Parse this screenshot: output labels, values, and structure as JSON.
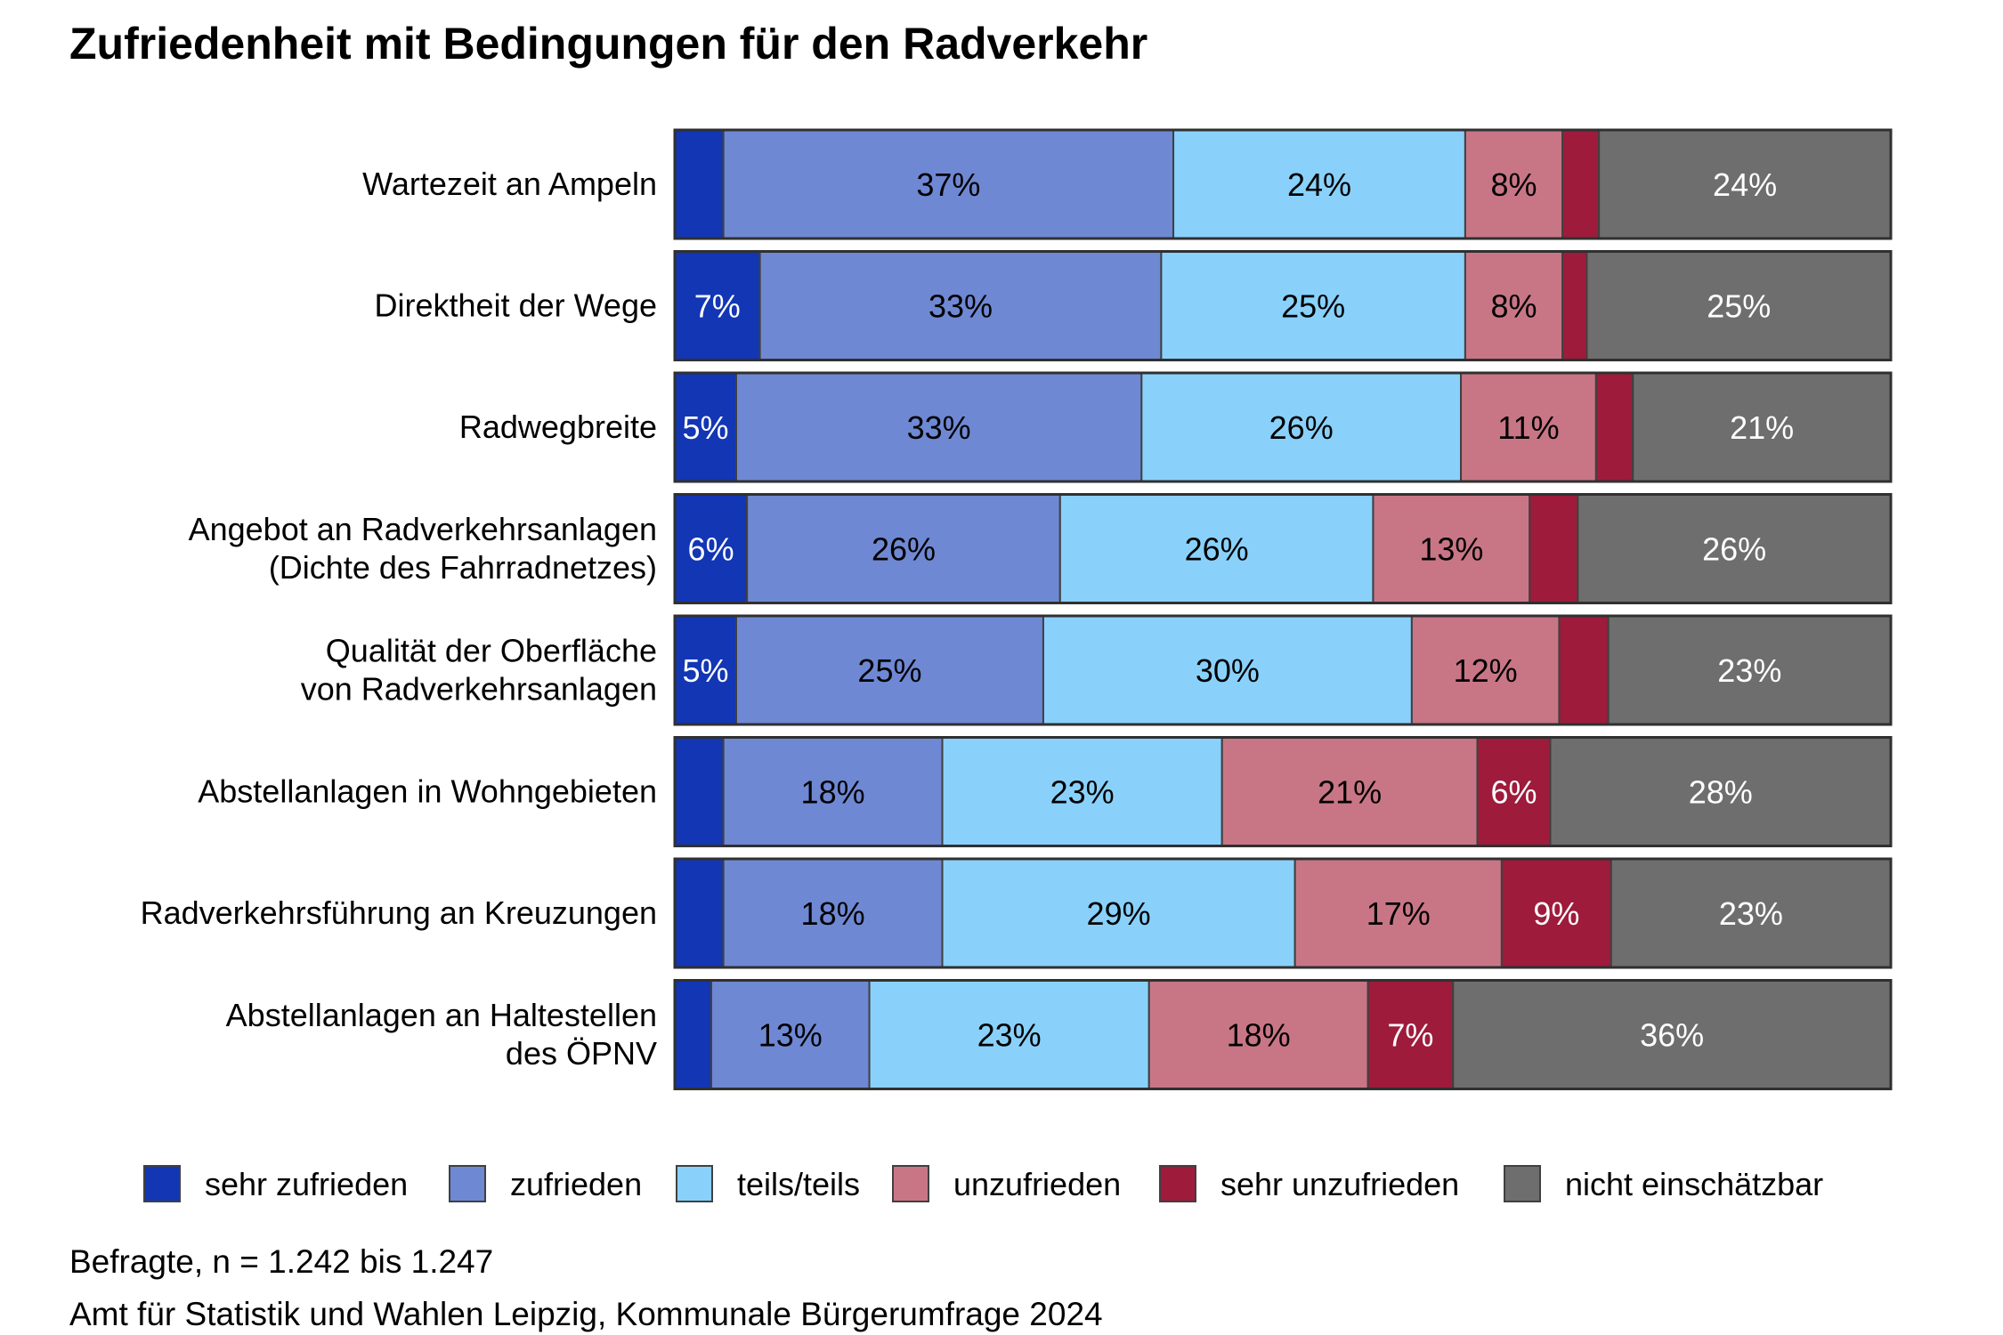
{
  "chart_data": {
    "type": "bar",
    "orientation": "horizontal",
    "stacked": true,
    "title": "Zufriedenheit mit Bedingungen für den Radverkehr",
    "xlim": [
      0,
      100
    ],
    "unit": "%",
    "grid": false,
    "legend_position": "bottom",
    "categories": [
      [
        "Wartezeit an Ampeln"
      ],
      [
        "Direktheit der Wege"
      ],
      [
        "Radwegbreite"
      ],
      [
        "Angebot an Radverkehrsanlagen",
        "(Dichte des Fahrradnetzes)"
      ],
      [
        "Qualität der Oberfläche",
        "von Radverkehrsanlagen"
      ],
      [
        "Abstellanlagen in Wohngebieten"
      ],
      [
        "Radverkehrsführung an Kreuzungen"
      ],
      [
        "Abstellanlagen an Haltestellen",
        "des ÖPNV"
      ]
    ],
    "series": [
      {
        "name": "sehr zufrieden",
        "color": "#1236b4",
        "text_color": "#ffffff",
        "values": [
          4,
          7,
          5,
          6,
          5,
          4,
          4,
          3
        ],
        "labeled": [
          false,
          true,
          true,
          true,
          true,
          false,
          false,
          false
        ]
      },
      {
        "name": "zufrieden",
        "color": "#6f88d3",
        "text_color": "#000000",
        "values": [
          37,
          33,
          33,
          26,
          25,
          18,
          18,
          13
        ],
        "labeled": [
          true,
          true,
          true,
          true,
          true,
          true,
          true,
          true
        ]
      },
      {
        "name": "teils/teils",
        "color": "#89d1fb",
        "text_color": "#000000",
        "values": [
          24,
          25,
          26,
          26,
          30,
          23,
          29,
          23
        ],
        "labeled": [
          true,
          true,
          true,
          true,
          true,
          true,
          true,
          true
        ]
      },
      {
        "name": "unzufrieden",
        "color": "#c87686",
        "text_color": "#000000",
        "values": [
          8,
          8,
          11,
          13,
          12,
          21,
          17,
          18
        ],
        "labeled": [
          true,
          true,
          true,
          true,
          true,
          true,
          true,
          true
        ]
      },
      {
        "name": "sehr unzufrieden",
        "color": "#9e1b3b",
        "text_color": "#ffffff",
        "values": [
          3,
          2,
          3,
          4,
          4,
          6,
          9,
          7
        ],
        "labeled": [
          false,
          false,
          false,
          false,
          false,
          true,
          true,
          true
        ]
      },
      {
        "name": "nicht einschätzbar",
        "color": "#6e6e6e",
        "text_color": "#ffffff",
        "values": [
          24,
          25,
          21,
          26,
          23,
          28,
          23,
          36
        ],
        "labeled": [
          true,
          true,
          true,
          true,
          true,
          true,
          true,
          true
        ]
      }
    ]
  },
  "footer": {
    "sample": "Befragte, n = 1.242 bis 1.247",
    "source": "Amt für Statistik und Wahlen Leipzig, Kommunale Bürgerumfrage 2024"
  }
}
